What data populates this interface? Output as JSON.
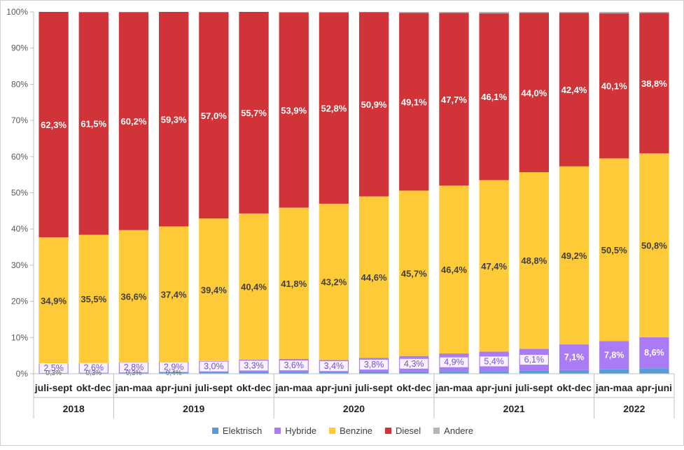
{
  "chart_data": {
    "type": "bar",
    "stacked": true,
    "percent": true,
    "categories": [
      "juli-sept",
      "okt-dec",
      "jan-maa",
      "apr-juni",
      "juli-sept",
      "okt-dec",
      "jan-maa",
      "apr-juni",
      "juli-sept",
      "okt-dec",
      "jan-maa",
      "apr-juni",
      "juli-sept",
      "okt-dec",
      "jan-maa",
      "apr-juni"
    ],
    "groups": [
      {
        "label": "2018",
        "count": 2
      },
      {
        "label": "2019",
        "count": 4
      },
      {
        "label": "2020",
        "count": 4
      },
      {
        "label": "2021",
        "count": 4
      },
      {
        "label": "2022",
        "count": 2
      }
    ],
    "yticks": [
      "0%",
      "10%",
      "20%",
      "30%",
      "40%",
      "50%",
      "60%",
      "70%",
      "80%",
      "90%",
      "100%"
    ],
    "ylim": [
      0,
      100
    ],
    "grid": false,
    "legend_position": "bottom",
    "series": [
      {
        "name": "Elektrisch",
        "color": "#5B9BD5",
        "values": [
          0.3,
          0.3,
          0.3,
          0.4,
          0.5,
          0.6,
          0.5,
          0.4,
          0.6,
          0.6,
          0.7,
          0.7,
          0.8,
          1.0,
          1.2,
          1.5
        ],
        "labels": [
          "0,3%",
          "0,3%",
          "0,3%",
          "0,4%",
          "",
          "",
          "",
          "",
          "",
          "",
          "",
          "",
          "",
          "",
          "",
          ""
        ]
      },
      {
        "name": "Hybride",
        "color": "#A97CF5",
        "values": [
          2.5,
          2.6,
          2.8,
          2.9,
          3.0,
          3.3,
          3.6,
          3.4,
          3.8,
          4.3,
          4.9,
          5.4,
          6.1,
          7.1,
          7.8,
          8.6
        ],
        "labels": [
          "2,5%",
          "2,6%",
          "2,8%",
          "2,9%",
          "3,0%",
          "3,3%",
          "3,6%",
          "3,4%",
          "3,8%",
          "4,3%",
          "4,9%",
          "5,4%",
          "6,1%",
          "7,1%",
          "7,8%",
          "8,6%"
        ]
      },
      {
        "name": "Benzine",
        "color": "#FFCA38",
        "values": [
          34.9,
          35.5,
          36.6,
          37.4,
          39.4,
          40.4,
          41.8,
          43.2,
          44.6,
          45.7,
          46.4,
          47.4,
          48.8,
          49.2,
          50.5,
          50.8
        ],
        "labels": [
          "34,9%",
          "35,5%",
          "36,6%",
          "37,4%",
          "39,4%",
          "40,4%",
          "41,8%",
          "43,2%",
          "44,6%",
          "45,7%",
          "46,4%",
          "47,4%",
          "48,8%",
          "49,2%",
          "50,5%",
          "50,8%"
        ]
      },
      {
        "name": "Diesel",
        "color": "#D13438",
        "values": [
          62.3,
          61.5,
          60.2,
          59.3,
          57.0,
          55.7,
          53.9,
          52.8,
          50.9,
          49.1,
          47.7,
          46.1,
          44.0,
          42.4,
          40.1,
          38.8
        ],
        "labels": [
          "62,3%",
          "61,5%",
          "60,2%",
          "59,3%",
          "57,0%",
          "55,7%",
          "53,9%",
          "52,8%",
          "50,9%",
          "49,1%",
          "47,7%",
          "46,1%",
          "44,0%",
          "42,4%",
          "40,1%",
          "38,8%"
        ]
      },
      {
        "name": "Andere",
        "color": "#B4B4B4",
        "values": [
          0.0,
          0.1,
          0.1,
          0.0,
          0.1,
          0.0,
          0.2,
          0.2,
          0.1,
          0.3,
          0.3,
          0.4,
          0.3,
          0.3,
          0.4,
          0.3
        ],
        "labels": []
      }
    ]
  }
}
